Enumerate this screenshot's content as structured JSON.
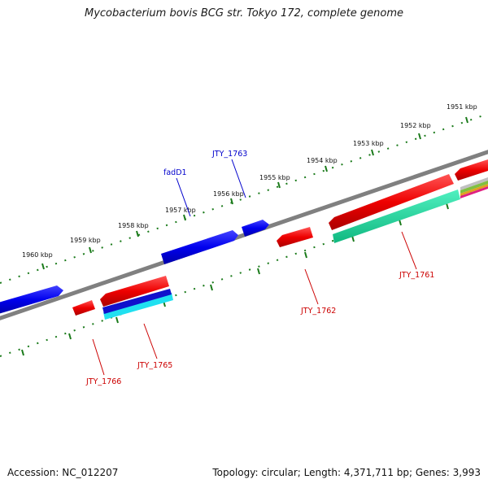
{
  "title": "Mycobacterium bovis BCG str. Tokyo 172, complete genome",
  "footer": {
    "accession": "Accession: NC_012207",
    "summary": "Topology: circular; Length: 4,371,711 bp; Genes: 3,993"
  },
  "scale_labels": [
    "1951 kbp",
    "1952 kbp",
    "1953 kbp",
    "1954 kbp",
    "1955 kbp",
    "1956 kbp",
    "1957 kbp",
    "1958 kbp",
    "1959 kbp",
    "1960 kbp"
  ],
  "gene_labels": {
    "fadD1": "fadD1",
    "jty1763": "JTY_1763",
    "jty1761": "JTY_1761",
    "jty1762": "JTY_1762",
    "jty1765": "JTY_1765",
    "jty1766": "JTY_1766"
  },
  "colors": {
    "forward_strand": "#0000ee",
    "reverse_strand": "#ee0000",
    "label_forward": "#0000cc",
    "label_reverse": "#cc0000",
    "backbone": "#808080",
    "ticks": "#1a7a1a",
    "teal_feature": "#20d8a0",
    "cyan_feature": "#20e0f0"
  }
}
